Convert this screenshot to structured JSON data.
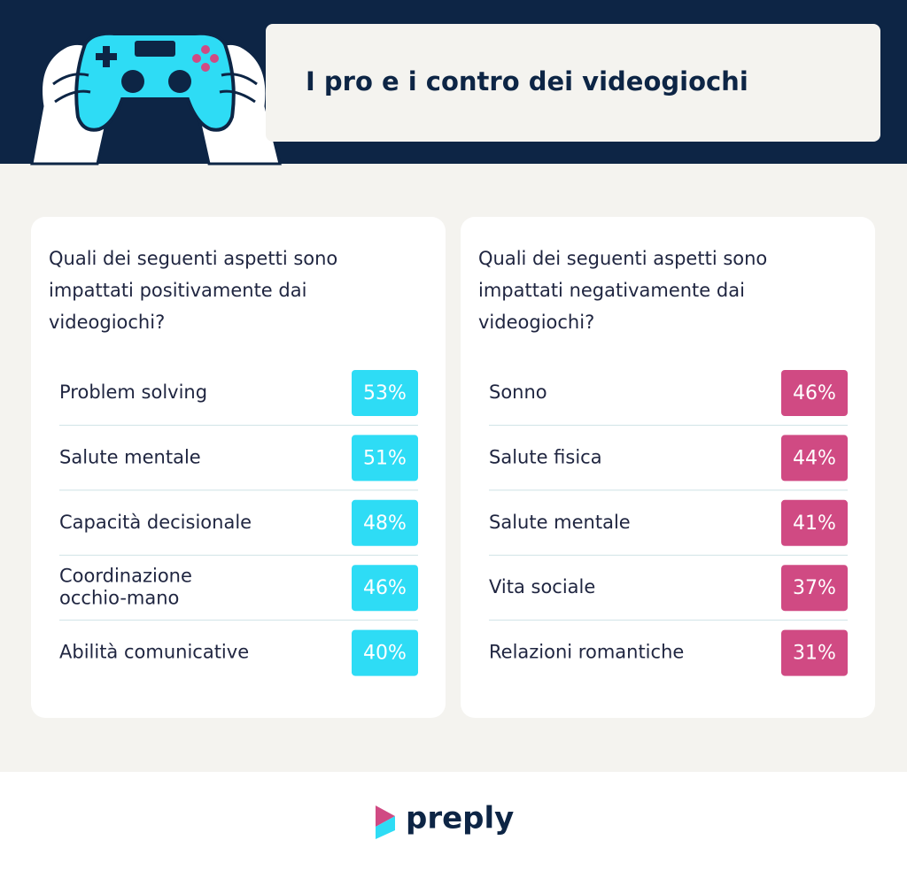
{
  "header": {
    "title": "I pro e i contro dei videogiochi"
  },
  "panels": [
    {
      "question": [
        "Quali dei seguenti aspetti sono",
        "impattati positivamente dai",
        "videogiochi?"
      ],
      "color": "#2edcf5",
      "rows": [
        {
          "label": [
            "Problem solving"
          ],
          "value": "53%"
        },
        {
          "label": [
            "Salute mentale"
          ],
          "value": "51%"
        },
        {
          "label": [
            "Capacità decisionale"
          ],
          "value": "48%"
        },
        {
          "label": [
            "Coordinazione",
            "occhio-mano"
          ],
          "value": "46%"
        },
        {
          "label": [
            "Abilità comunicative"
          ],
          "value": "40%"
        }
      ]
    },
    {
      "question": [
        "Quali dei seguenti aspetti sono",
        "impattati negativamente dai",
        "videogiochi?"
      ],
      "color": "#d04a83",
      "rows": [
        {
          "label": [
            "Sonno"
          ],
          "value": "46%"
        },
        {
          "label": [
            "Salute fisica"
          ],
          "value": "44%"
        },
        {
          "label": [
            "Salute mentale"
          ],
          "value": "41%"
        },
        {
          "label": [
            "Vita sociale"
          ],
          "value": "37%"
        },
        {
          "label": [
            "Relazioni romantiche"
          ],
          "value": "31%"
        }
      ]
    }
  ],
  "footer": {
    "logo": "preply"
  }
}
